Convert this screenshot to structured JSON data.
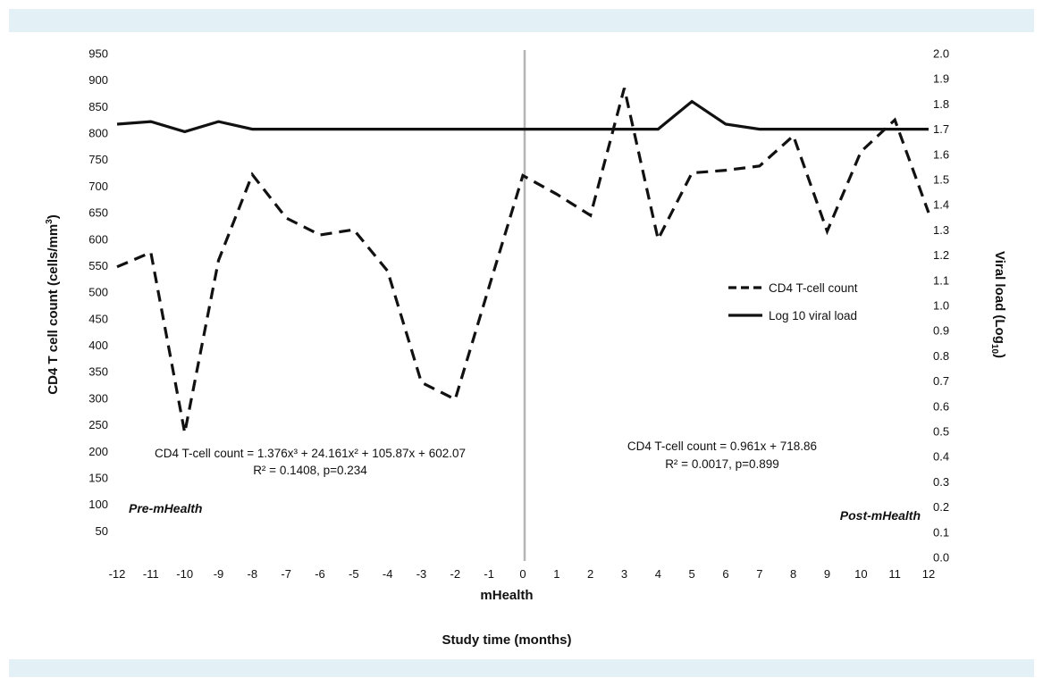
{
  "chart_data": {
    "type": "line",
    "xlabel": "Study time (months)",
    "x_divider_label": "mHealth",
    "ylabel_left": "CD4 T cell count (cells/mm",
    "ylabel_left_sup": "3",
    "ylabel_left_end": ")",
    "ylabel_right": "Viral load (Log",
    "ylabel_right_sub": "10",
    "ylabel_right_end": ")",
    "x": [
      -12,
      -11,
      -10,
      -9,
      -8,
      -7,
      -6,
      -5,
      -4,
      -3,
      -2,
      -1,
      0,
      1,
      2,
      3,
      4,
      5,
      6,
      7,
      8,
      9,
      10,
      11,
      12
    ],
    "xlim": [
      -12,
      12
    ],
    "ylim_left": [
      0,
      950
    ],
    "ylim_right": [
      0.0,
      2.0
    ],
    "left_ticks": [
      "50",
      "100",
      "150",
      "200",
      "250",
      "300",
      "350",
      "400",
      "450",
      "500",
      "550",
      "600",
      "650",
      "700",
      "750",
      "800",
      "850",
      "900",
      "950"
    ],
    "right_ticks": [
      "0.0",
      "0.1",
      "0.2",
      "0.3",
      "0.4",
      "0.5",
      "0.6",
      "0.7",
      "0.8",
      "0.9",
      "1.0",
      "1.1",
      "1.2",
      "1.3",
      "1.4",
      "1.5",
      "1.6",
      "1.7",
      "1.8",
      "1.9",
      "2.0"
    ],
    "series": [
      {
        "name": "CD4 T-cell count",
        "axis": "left",
        "style": "dashed",
        "values": [
          548,
          575,
          235,
          560,
          722,
          640,
          608,
          618,
          540,
          330,
          298,
          510,
          720,
          685,
          645,
          885,
          600,
          725,
          730,
          738,
          795,
          615,
          765,
          825,
          650
        ]
      },
      {
        "name": "Log 10 viral load",
        "axis": "right",
        "style": "solid",
        "values": [
          1.72,
          1.73,
          1.69,
          1.73,
          1.7,
          1.7,
          1.7,
          1.7,
          1.7,
          1.7,
          1.7,
          1.7,
          1.7,
          1.7,
          1.7,
          1.7,
          1.7,
          1.81,
          1.72,
          1.7,
          1.7,
          1.7,
          1.7,
          1.7,
          1.7
        ]
      }
    ],
    "divider_x": 0,
    "legend_position": "right",
    "annotations": {
      "pre_equation": "CD4 T-cell count = 1.376x³ + 24.161x² + 105.87x + 602.07",
      "pre_r2": "R² = 0.1408, p=0.234",
      "post_equation": "CD4 T-cell count  = 0.961x + 718.86",
      "post_r2": "R² = 0.0017, p=0.899",
      "pre_label": "Pre-mHealth",
      "post_label": "Post-mHealth"
    }
  }
}
